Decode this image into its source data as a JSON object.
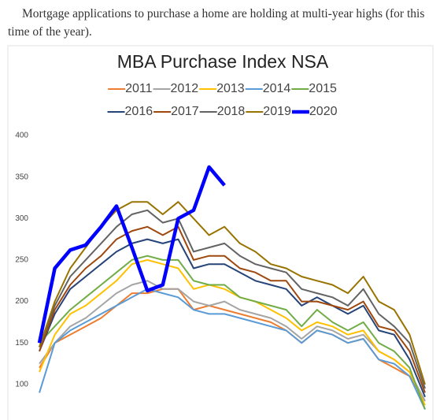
{
  "intro": "Mortgage applications to purchase a home are holding at multi-year highs (for this time of the year).",
  "chart_data": {
    "type": "line",
    "title": "MBA Purchase Index NSA",
    "categories": [
      null,
      null,
      null,
      null,
      null,
      null,
      null,
      null,
      null,
      null,
      null,
      null,
      null,
      null,
      null,
      null,
      null,
      null,
      null,
      null,
      null,
      null,
      null,
      null,
      null,
      null
    ],
    "ylim": [
      60,
      400
    ],
    "yticks": [
      100,
      150,
      200,
      250,
      300,
      350,
      400
    ],
    "series": [
      {
        "name": "2011",
        "color": "#ed7d31",
        "width": 2,
        "values": [
          120,
          150,
          160,
          170,
          180,
          195,
          210,
          210,
          215,
          215,
          190,
          195,
          190,
          185,
          180,
          175,
          165,
          150,
          165,
          160,
          150,
          155,
          130,
          120,
          110,
          80
        ]
      },
      {
        "name": "2012",
        "color": "#a5a5a5",
        "width": 2,
        "values": [
          125,
          150,
          170,
          180,
          195,
          210,
          220,
          225,
          215,
          215,
          200,
          195,
          200,
          190,
          185,
          180,
          170,
          155,
          170,
          165,
          155,
          160,
          140,
          130,
          115,
          80
        ]
      },
      {
        "name": "2013",
        "color": "#ffc000",
        "width": 2,
        "values": [
          115,
          160,
          185,
          195,
          210,
          225,
          245,
          250,
          245,
          240,
          215,
          220,
          215,
          205,
          200,
          190,
          180,
          165,
          175,
          170,
          160,
          165,
          140,
          130,
          115,
          75
        ]
      },
      {
        "name": "2014",
        "color": "#5b9bd5",
        "width": 2,
        "values": [
          90,
          150,
          165,
          175,
          185,
          195,
          205,
          215,
          210,
          205,
          190,
          185,
          185,
          180,
          175,
          170,
          165,
          150,
          165,
          160,
          150,
          155,
          130,
          125,
          110,
          70
        ]
      },
      {
        "name": "2015",
        "color": "#70ad47",
        "width": 2,
        "values": [
          150,
          170,
          190,
          205,
          220,
          235,
          250,
          255,
          250,
          250,
          225,
          220,
          220,
          205,
          200,
          195,
          190,
          170,
          190,
          175,
          165,
          175,
          150,
          140,
          120,
          70
        ]
      },
      {
        "name": "2016",
        "color": "#264478",
        "width": 2,
        "values": [
          140,
          185,
          215,
          230,
          245,
          260,
          270,
          275,
          270,
          275,
          240,
          245,
          245,
          235,
          225,
          220,
          215,
          195,
          205,
          195,
          185,
          195,
          165,
          160,
          130,
          85
        ]
      },
      {
        "name": "2017",
        "color": "#9e480e",
        "width": 2,
        "values": [
          140,
          190,
          220,
          240,
          255,
          275,
          285,
          290,
          280,
          290,
          250,
          255,
          255,
          240,
          235,
          225,
          225,
          200,
          200,
          195,
          190,
          200,
          170,
          165,
          140,
          90
        ]
      },
      {
        "name": "2018",
        "color": "#636363",
        "width": 2,
        "values": [
          145,
          195,
          230,
          250,
          270,
          290,
          305,
          310,
          295,
          300,
          260,
          265,
          270,
          255,
          245,
          240,
          235,
          215,
          210,
          205,
          195,
          215,
          185,
          170,
          150,
          95
        ]
      },
      {
        "name": "2019",
        "color": "#997300",
        "width": 2,
        "values": [
          145,
          200,
          240,
          265,
          290,
          310,
          320,
          320,
          305,
          320,
          300,
          280,
          290,
          270,
          260,
          245,
          240,
          230,
          225,
          220,
          210,
          230,
          200,
          190,
          160,
          100
        ]
      },
      {
        "name": "2020",
        "color": "#0000ff",
        "width": 4.5,
        "values": [
          150,
          240,
          262,
          268,
          290,
          315,
          265,
          213,
          220,
          300,
          310,
          362,
          340,
          null,
          null,
          null,
          null,
          null,
          null,
          null,
          null,
          null,
          null,
          null,
          null,
          null
        ]
      }
    ]
  }
}
